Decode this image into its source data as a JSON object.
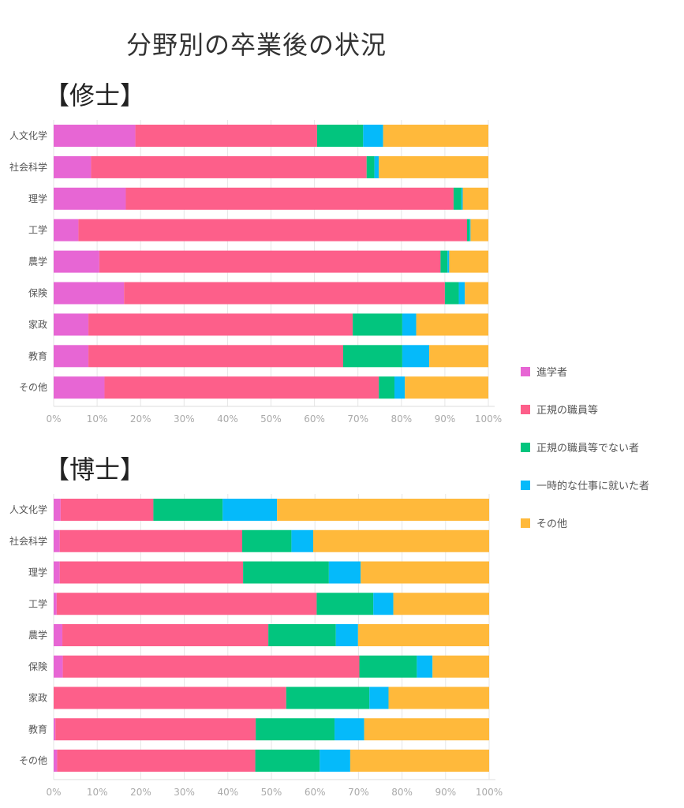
{
  "title": "分野別の卒業後の状況",
  "legend": {
    "placement": "right",
    "entries": [
      {
        "name": "進学者",
        "color": "#e766d4"
      },
      {
        "name": "正規の職員等",
        "color": "#fd5f8a"
      },
      {
        "name": "正規の職員等でない者",
        "color": "#02c57e"
      },
      {
        "name": "一時的な仕事に就いた者",
        "color": "#05bafa"
      },
      {
        "name": "その他",
        "color": "#ffb93b"
      }
    ]
  },
  "chart_data": [
    {
      "type": "bar",
      "orientation": "horizontal",
      "stacked": true,
      "title": "【修士】",
      "xlim": [
        0,
        100
      ],
      "xticks": [
        "0%",
        "10%",
        "20%",
        "30%",
        "40%",
        "50%",
        "60%",
        "70%",
        "80%",
        "90%",
        "100%"
      ],
      "grid": true,
      "categories": [
        "人文化学",
        "社会科学",
        "理学",
        "工学",
        "農学",
        "保険",
        "家政",
        "教育",
        "その他"
      ],
      "series": [
        {
          "name": "進学者",
          "values": [
            18.8,
            8.6,
            16.6,
            5.7,
            10.5,
            16.2,
            8.0,
            8.0,
            11.7
          ]
        },
        {
          "name": "正規の職員等",
          "values": [
            41.8,
            63.4,
            75.4,
            89.4,
            78.5,
            73.8,
            60.8,
            58.6,
            63.1
          ]
        },
        {
          "name": "正規の職員等でない者",
          "values": [
            10.6,
            1.8,
            1.8,
            0.6,
            1.6,
            3.2,
            11.4,
            13.6,
            3.6
          ]
        },
        {
          "name": "一時的な仕事に就いた者",
          "values": [
            4.6,
            1.0,
            0.3,
            0.2,
            0.4,
            1.4,
            3.2,
            6.2,
            2.4
          ]
        },
        {
          "name": "その他",
          "values": [
            24.2,
            25.2,
            5.9,
            4.1,
            9.0,
            5.4,
            16.6,
            13.6,
            19.2
          ]
        }
      ]
    },
    {
      "type": "bar",
      "orientation": "horizontal",
      "stacked": true,
      "title": "【博士】",
      "xlim": [
        0,
        100
      ],
      "xticks": [
        "0%",
        "10%",
        "20%",
        "30%",
        "40%",
        "50%",
        "60%",
        "70%",
        "80%",
        "90%",
        "100%"
      ],
      "grid": true,
      "categories": [
        "人文化学",
        "社会科学",
        "理学",
        "工学",
        "農学",
        "保険",
        "家政",
        "教育",
        "その他"
      ],
      "series": [
        {
          "name": "進学者",
          "values": [
            1.6,
            1.4,
            1.4,
            0.7,
            2.0,
            2.1,
            0.0,
            0.4,
            0.8
          ]
        },
        {
          "name": "正規の職員等",
          "values": [
            21.3,
            41.9,
            42.1,
            59.7,
            47.3,
            68.1,
            53.4,
            46.0,
            45.5
          ]
        },
        {
          "name": "正規の職員等でない者",
          "values": [
            15.9,
            11.3,
            19.7,
            13.0,
            15.5,
            13.2,
            19.1,
            18.1,
            14.8
          ]
        },
        {
          "name": "一時的な仕事に就いた者",
          "values": [
            12.5,
            5.0,
            7.3,
            4.6,
            5.1,
            3.6,
            4.4,
            6.8,
            7.0
          ]
        },
        {
          "name": "その他",
          "values": [
            48.7,
            40.4,
            29.5,
            22.0,
            30.1,
            13.0,
            23.1,
            28.7,
            31.9
          ]
        }
      ]
    }
  ]
}
